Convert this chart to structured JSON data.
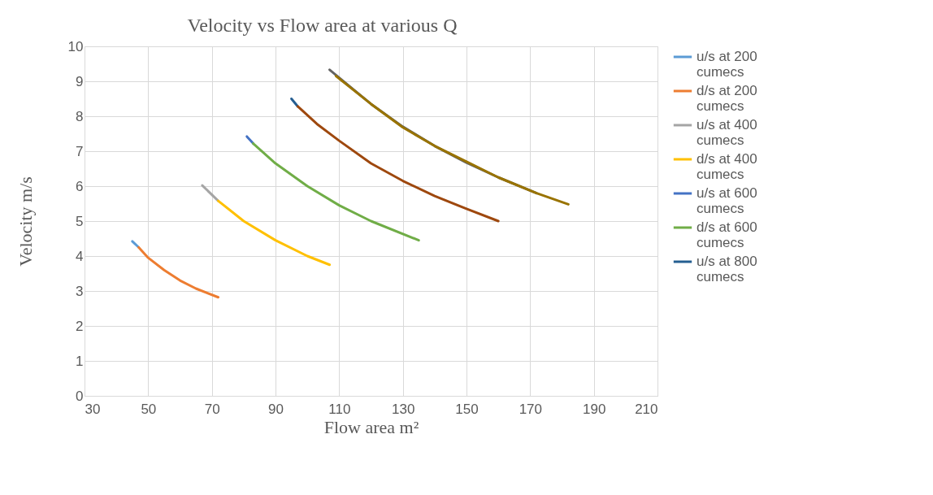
{
  "chart_data": {
    "type": "line",
    "title": "Velocity vs Flow area at various Q",
    "xlabel": "Flow area m²",
    "ylabel": "Velocity m/s",
    "xlim": [
      30,
      210
    ],
    "xticks": [
      30,
      50,
      70,
      90,
      110,
      130,
      150,
      170,
      190,
      210
    ],
    "ylim": [
      0,
      10
    ],
    "yticks": [
      0,
      1,
      2,
      3,
      4,
      5,
      6,
      7,
      8,
      9,
      10
    ],
    "grid": true,
    "legend": "right",
    "marker": "none",
    "line_style": "solid",
    "series": [
      {
        "name": "u/s at 200 cumecs",
        "color": "#5b9bd5",
        "x": [
          45,
          47
        ],
        "values": [
          4.42,
          4.25
        ]
      },
      {
        "name": "d/s at 200 cumecs",
        "color": "#ed7d31",
        "x": [
          47,
          50,
          55,
          60,
          65,
          72
        ],
        "values": [
          4.25,
          3.95,
          3.6,
          3.3,
          3.07,
          2.82
        ]
      },
      {
        "name": "u/s at 400 cumecs",
        "color": "#a5a5a5",
        "x": [
          67,
          72
        ],
        "values": [
          6.02,
          5.58
        ]
      },
      {
        "name": "d/s at 400 cumecs",
        "color": "#ffc000",
        "x": [
          72,
          80,
          90,
          100,
          107
        ],
        "values": [
          5.58,
          5.0,
          4.45,
          4.0,
          3.75
        ]
      },
      {
        "name": "u/s at 600 cumecs",
        "color": "#4472c4",
        "x": [
          81,
          83
        ],
        "values": [
          7.42,
          7.22
        ]
      },
      {
        "name": "d/s at 600 cumecs",
        "color": "#70ad47",
        "x": [
          83,
          90,
          100,
          110,
          120,
          135
        ],
        "values": [
          7.22,
          6.65,
          6.0,
          5.45,
          5.0,
          4.45
        ]
      },
      {
        "name": "u/s at 800 cumecs",
        "color": "#255e91",
        "x": [
          95,
          97
        ],
        "values": [
          8.5,
          8.28
        ]
      },
      {
        "color": "#9e480e",
        "x": [
          97,
          103,
          110,
          120,
          130,
          140,
          150,
          160
        ],
        "values": [
          8.28,
          7.78,
          7.3,
          6.65,
          6.15,
          5.72,
          5.35,
          5.0
        ]
      },
      {
        "color": "#636363",
        "x": [
          107,
          110,
          120,
          130,
          140,
          150,
          160,
          172
        ],
        "values": [
          9.33,
          9.1,
          8.35,
          7.7,
          7.15,
          6.67,
          6.25,
          5.8
        ]
      },
      {
        "color": "#997300",
        "x": [
          109,
          120,
          130,
          140,
          150,
          160,
          172,
          182
        ],
        "values": [
          9.15,
          8.35,
          7.68,
          7.15,
          6.7,
          6.25,
          5.8,
          5.48
        ]
      }
    ]
  }
}
